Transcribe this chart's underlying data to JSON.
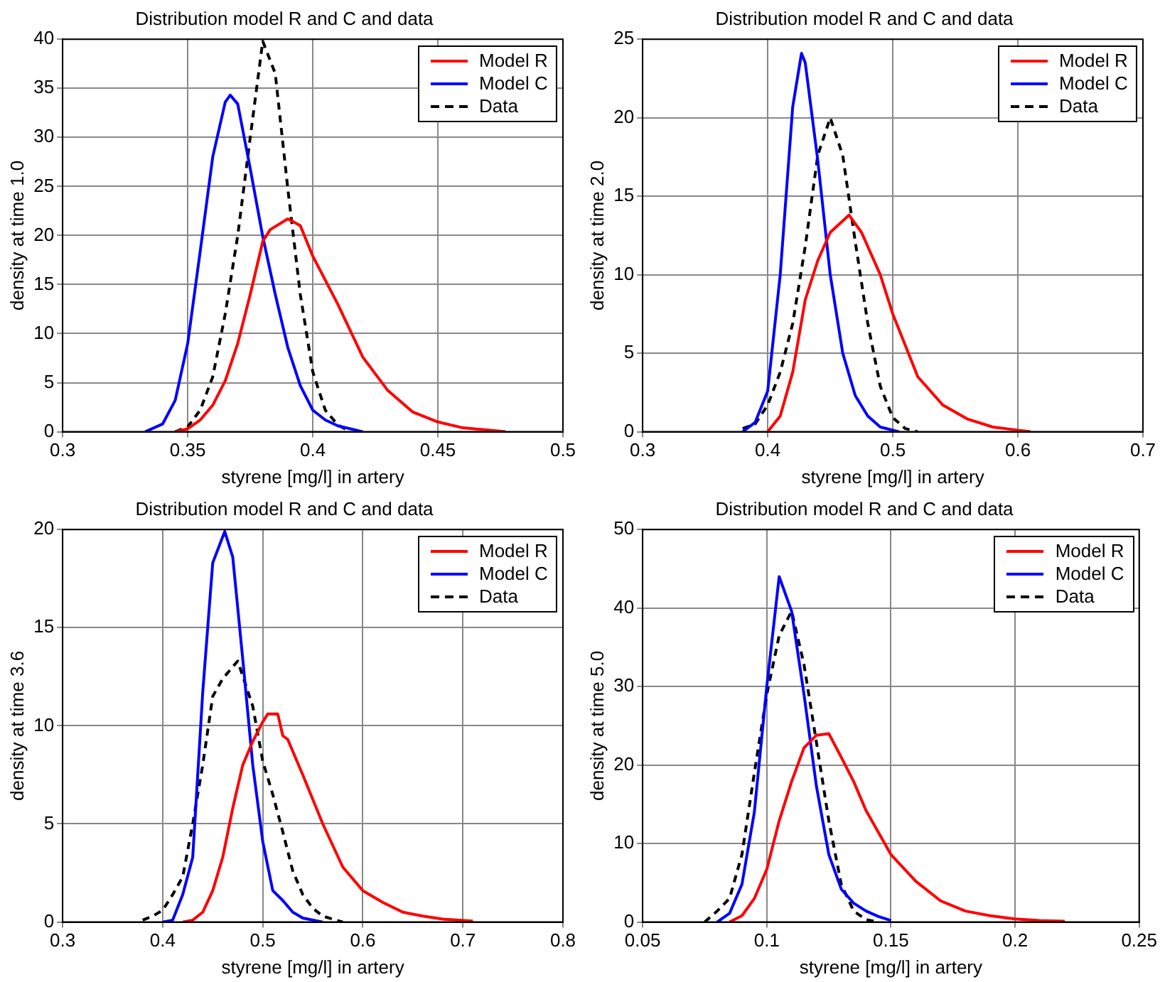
{
  "chart_data": [
    {
      "type": "line",
      "title": "Distribution model R and C and data",
      "xlabel": "styrene [mg/l] in artery",
      "ylabel": "density at time 1.0",
      "xlim": [
        0.3,
        0.5
      ],
      "xticks": [
        0.3,
        0.35,
        0.4,
        0.45,
        0.5
      ],
      "ylim": [
        0,
        40
      ],
      "yticks": [
        0,
        5,
        10,
        15,
        20,
        25,
        30,
        35,
        40
      ],
      "grid": true,
      "legend": "top right",
      "marker": "none",
      "series": [
        {
          "name": "Model R",
          "color": "#ff0000",
          "line_style": "solid",
          "x": [
            0.345,
            0.35,
            0.355,
            0.36,
            0.365,
            0.37,
            0.375,
            0.38,
            0.383,
            0.39,
            0.395,
            0.4,
            0.41,
            0.42,
            0.43,
            0.44,
            0.45,
            0.46,
            0.477
          ],
          "values": [
            0,
            0.3,
            1.2,
            2.7,
            5.2,
            9,
            14,
            19.4,
            20.6,
            21.7,
            21,
            17.9,
            13,
            7.6,
            4.2,
            2,
            1,
            0.4,
            0
          ]
        },
        {
          "name": "Model C",
          "color": "#0000ff",
          "line_style": "solid",
          "x": [
            0.333,
            0.34,
            0.345,
            0.35,
            0.355,
            0.36,
            0.365,
            0.367,
            0.37,
            0.375,
            0.38,
            0.385,
            0.39,
            0.395,
            0.4,
            0.405,
            0.41,
            0.42
          ],
          "values": [
            0,
            0.8,
            3.2,
            9,
            18.4,
            28,
            33.6,
            34.3,
            33.4,
            26.8,
            19.9,
            14,
            8.6,
            4.7,
            2.2,
            1.2,
            0.6,
            0
          ]
        },
        {
          "name": "Data",
          "color": "#000000",
          "line_style": "dashed",
          "x": [
            0.345,
            0.35,
            0.355,
            0.36,
            0.365,
            0.37,
            0.375,
            0.38,
            0.385,
            0.39,
            0.395,
            0.4,
            0.405,
            0.41,
            0.415
          ],
          "values": [
            0,
            0.5,
            2.2,
            5.6,
            12,
            20,
            30,
            39.8,
            36.5,
            24.8,
            14,
            6.1,
            2.2,
            0.7,
            0
          ]
        }
      ]
    },
    {
      "type": "line",
      "title": "Distribution model R and C and data",
      "xlabel": "styrene [mg/l] in artery",
      "ylabel": "density at time 2.0",
      "xlim": [
        0.3,
        0.7
      ],
      "xticks": [
        0.3,
        0.4,
        0.5,
        0.6,
        0.7
      ],
      "ylim": [
        0,
        25
      ],
      "yticks": [
        0,
        5,
        10,
        15,
        20,
        25
      ],
      "grid": true,
      "legend": "top right",
      "marker": "none",
      "series": [
        {
          "name": "Model R",
          "color": "#ff0000",
          "line_style": "solid",
          "x": [
            0.4,
            0.41,
            0.42,
            0.43,
            0.44,
            0.45,
            0.465,
            0.475,
            0.49,
            0.5,
            0.52,
            0.54,
            0.56,
            0.58,
            0.6,
            0.61
          ],
          "values": [
            0,
            1,
            3.8,
            8.4,
            10.9,
            12.7,
            13.8,
            12.7,
            10,
            7.5,
            3.5,
            1.7,
            0.8,
            0.3,
            0.1,
            0
          ]
        },
        {
          "name": "Model C",
          "color": "#0000ff",
          "line_style": "solid",
          "x": [
            0.38,
            0.39,
            0.4,
            0.41,
            0.42,
            0.427,
            0.43,
            0.44,
            0.45,
            0.46,
            0.47,
            0.48,
            0.49,
            0.505
          ],
          "values": [
            0,
            0.6,
            2.6,
            10,
            20.7,
            24.1,
            23.5,
            17.3,
            10,
            5,
            2.3,
            1,
            0.3,
            0
          ]
        },
        {
          "name": "Data",
          "color": "#000000",
          "line_style": "dashed",
          "x": [
            0.38,
            0.39,
            0.4,
            0.41,
            0.42,
            0.43,
            0.44,
            0.45,
            0.46,
            0.47,
            0.48,
            0.49,
            0.5,
            0.51,
            0.52
          ],
          "values": [
            0.2,
            0.5,
            1.7,
            3.8,
            6.9,
            11.8,
            17.6,
            20,
            17.6,
            12.1,
            6.9,
            2.9,
            0.9,
            0.2,
            0
          ]
        }
      ]
    },
    {
      "type": "line",
      "title": "Distribution model R and C and data",
      "xlabel": "styrene [mg/l] in artery",
      "ylabel": "density at time 3.6",
      "xlim": [
        0.3,
        0.8
      ],
      "xticks": [
        0.3,
        0.4,
        0.5,
        0.6,
        0.7,
        0.8
      ],
      "ylim": [
        0,
        20
      ],
      "yticks": [
        0,
        5,
        10,
        15,
        20
      ],
      "grid": true,
      "legend": "top right",
      "marker": "none",
      "series": [
        {
          "name": "Model R",
          "color": "#ff0000",
          "line_style": "solid",
          "x": [
            0.42,
            0.43,
            0.44,
            0.45,
            0.46,
            0.47,
            0.48,
            0.49,
            0.5,
            0.505,
            0.515,
            0.52,
            0.525,
            0.54,
            0.56,
            0.58,
            0.6,
            0.62,
            0.64,
            0.66,
            0.68,
            0.71
          ],
          "values": [
            0,
            0.1,
            0.5,
            1.6,
            3.3,
            5.8,
            8,
            9.2,
            10.2,
            10.6,
            10.6,
            9.5,
            9.3,
            7.5,
            5,
            2.8,
            1.6,
            1,
            0.5,
            0.3,
            0.15,
            0.05
          ]
        },
        {
          "name": "Model C",
          "color": "#0000ff",
          "line_style": "solid",
          "x": [
            0.4,
            0.41,
            0.42,
            0.43,
            0.44,
            0.45,
            0.462,
            0.47,
            0.48,
            0.49,
            0.5,
            0.51,
            0.52,
            0.53,
            0.54,
            0.56
          ],
          "values": [
            0,
            0.1,
            1.4,
            3.3,
            11.7,
            18.3,
            19.9,
            18.6,
            13.4,
            8,
            4.1,
            1.6,
            1.1,
            0.5,
            0.2,
            0
          ]
        },
        {
          "name": "Data",
          "color": "#000000",
          "line_style": "dashed",
          "x": [
            0.38,
            0.39,
            0.4,
            0.41,
            0.42,
            0.43,
            0.44,
            0.45,
            0.46,
            0.475,
            0.49,
            0.5,
            0.51,
            0.52,
            0.53,
            0.54,
            0.55,
            0.56,
            0.58
          ],
          "values": [
            0.1,
            0.3,
            0.6,
            1.4,
            2.3,
            5,
            8,
            11.5,
            12.4,
            13.3,
            11,
            8.2,
            6.5,
            4.6,
            2.6,
            1.4,
            0.7,
            0.3,
            0
          ]
        }
      ]
    },
    {
      "type": "line",
      "title": "Distribution model R and C and data",
      "xlabel": "styrene [mg/l] in artery",
      "ylabel": "density at time 5.0",
      "xlim": [
        0.05,
        0.25
      ],
      "xticks": [
        0.05,
        0.1,
        0.15,
        0.2,
        0.25
      ],
      "ylim": [
        0,
        50
      ],
      "yticks": [
        0,
        10,
        20,
        30,
        40,
        50
      ],
      "grid": true,
      "legend": "top right",
      "marker": "none",
      "series": [
        {
          "name": "Model R",
          "color": "#ff0000",
          "line_style": "solid",
          "x": [
            0.085,
            0.09,
            0.095,
            0.1,
            0.105,
            0.11,
            0.115,
            0.12,
            0.125,
            0.13,
            0.135,
            0.14,
            0.15,
            0.16,
            0.17,
            0.18,
            0.19,
            0.2,
            0.21,
            0.22
          ],
          "values": [
            0,
            0.8,
            3,
            6.7,
            12.9,
            17.9,
            22.2,
            23.8,
            24,
            21,
            17.9,
            14.2,
            8.6,
            5.2,
            2.7,
            1.4,
            0.8,
            0.4,
            0.2,
            0.1
          ]
        },
        {
          "name": "Model C",
          "color": "#0000ff",
          "line_style": "solid",
          "x": [
            0.08,
            0.085,
            0.09,
            0.095,
            0.1,
            0.105,
            0.11,
            0.115,
            0.12,
            0.125,
            0.13,
            0.135,
            0.14,
            0.145,
            0.15
          ],
          "values": [
            0,
            1.1,
            4.8,
            14,
            30,
            44,
            39.6,
            29,
            17.3,
            8.6,
            4.2,
            2.4,
            1.4,
            0.7,
            0.2
          ]
        },
        {
          "name": "Data",
          "color": "#000000",
          "line_style": "dashed",
          "x": [
            0.075,
            0.08,
            0.085,
            0.09,
            0.095,
            0.1,
            0.105,
            0.11,
            0.115,
            0.12,
            0.125,
            0.13,
            0.135,
            0.14,
            0.145
          ],
          "values": [
            0,
            1.4,
            3,
            8.6,
            19,
            29,
            36.5,
            39.6,
            32.8,
            22.9,
            12.9,
            4.8,
            1.4,
            0.3,
            0
          ]
        }
      ]
    }
  ]
}
